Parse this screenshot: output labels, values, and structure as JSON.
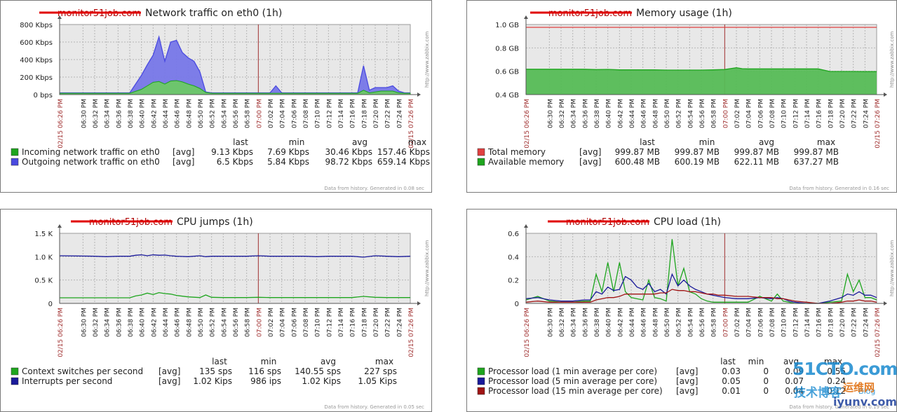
{
  "watermark": {
    "main": "51CTO.com",
    "sub1": "技术博客",
    "sub2": "Blog",
    "sub3": "运维网",
    "sub4": "iyunv.com"
  },
  "colors": {
    "plot_bg": "#e8e8e8",
    "grid": "#b5b5b5",
    "time_red": "#a03030",
    "green": "#1ea51e",
    "blue": "#4a4ae0",
    "darkblue": "#1a1a9a",
    "darkred": "#a01414",
    "trigger_red": "#e04040"
  },
  "time_labels": [
    "02/15 06:26 PM",
    "06:30 PM",
    "06:32 PM",
    "06:34 PM",
    "06:36 PM",
    "06:38 PM",
    "06:40 PM",
    "06:42 PM",
    "06:44 PM",
    "06:46 PM",
    "06:48 PM",
    "06:50 PM",
    "06:52 PM",
    "06:54 PM",
    "06:56 PM",
    "06:58 PM",
    "07:00 PM",
    "07:02 PM",
    "07:04 PM",
    "07:06 PM",
    "07:08 PM",
    "07:10 PM",
    "07:12 PM",
    "07:14 PM",
    "07:16 PM",
    "07:18 PM",
    "07:20 PM",
    "07:22 PM",
    "07:24 PM",
    "02/15 07:26 PM"
  ],
  "chart_data": [
    {
      "id": "network",
      "type": "area",
      "host_struck": "monitor51job.com",
      "title": "Network traffic on eth0 (1h)",
      "yticks": [
        "800 Kbps",
        "600 Kbps",
        "400 Kbps",
        "200 Kbps",
        "0 bps"
      ],
      "ylim": [
        0,
        800
      ],
      "unit": "Kbps",
      "x_minutes": [
        0,
        6,
        8,
        10,
        12,
        14,
        15,
        16,
        17,
        18,
        19,
        20,
        21,
        22,
        23,
        24,
        25,
        26,
        27,
        28,
        29,
        30,
        31,
        32,
        33,
        34,
        35,
        36,
        37,
        38,
        39,
        40,
        41,
        42,
        43,
        44,
        45,
        46,
        47,
        48,
        49,
        50,
        51,
        52,
        53,
        54,
        55,
        56,
        57,
        58,
        59,
        60
      ],
      "series": [
        {
          "name": "Incoming network traffic on eth0",
          "fn": "[avg]",
          "last": "9.13 Kbps",
          "min": "7.69 Kbps",
          "avg": "30.46 Kbps",
          "max": "157.46 Kbps",
          "color": "#1ea51e",
          "values": [
            15,
            15,
            15,
            15,
            15,
            60,
            100,
            140,
            150,
            120,
            155,
            160,
            145,
            120,
            100,
            70,
            25,
            15,
            15,
            15,
            15,
            15,
            15,
            15,
            15,
            15,
            15,
            15,
            15,
            15,
            15,
            15,
            15,
            15,
            15,
            15,
            15,
            15,
            15,
            15,
            15,
            15,
            15,
            50,
            20,
            30,
            40,
            40,
            40,
            20,
            15,
            15
          ]
        },
        {
          "name": "Outgoing network traffic on eth0",
          "fn": "[avg]",
          "last": "6.5 Kbps",
          "min": "5.84 Kbps",
          "avg": "98.72 Kbps",
          "max": "659.14 Kbps",
          "color": "#4a4ae0",
          "values": [
            20,
            20,
            20,
            20,
            20,
            220,
            340,
            450,
            660,
            380,
            600,
            620,
            480,
            420,
            380,
            260,
            30,
            20,
            20,
            20,
            20,
            20,
            20,
            20,
            20,
            20,
            20,
            20,
            100,
            20,
            20,
            20,
            20,
            20,
            20,
            20,
            20,
            20,
            20,
            20,
            20,
            20,
            20,
            330,
            50,
            80,
            80,
            80,
            100,
            40,
            20,
            20
          ]
        }
      ]
    },
    {
      "id": "memory",
      "type": "area",
      "host_struck": "monitor51job.com",
      "title": "Memory usage (1h)",
      "yticks": [
        "1.0 GB",
        "0.8 GB",
        "0.6 GB",
        "0.4 GB"
      ],
      "ylim": [
        0.4,
        1.0
      ],
      "unit": "GB",
      "x_minutes": [
        0,
        10,
        12,
        14,
        16,
        18,
        20,
        22,
        24,
        26,
        28,
        30,
        32,
        34,
        36,
        37,
        38,
        40,
        42,
        44,
        46,
        48,
        50,
        52,
        54,
        56,
        58,
        60
      ],
      "series": [
        {
          "name": "Total memory",
          "fn": "[avg]",
          "last": "999.87 MB",
          "min": "999.87 MB",
          "avg": "999.87 MB",
          "max": "999.87 MB",
          "color": "#e04040",
          "values": [
            0.976,
            0.976,
            0.976,
            0.976,
            0.976,
            0.976,
            0.976,
            0.976,
            0.976,
            0.976,
            0.976,
            0.976,
            0.976,
            0.976,
            0.976,
            0.976,
            0.976,
            0.976,
            0.976,
            0.976,
            0.976,
            0.976,
            0.976,
            0.976,
            0.976,
            0.976,
            0.976,
            0.976
          ]
        },
        {
          "name": "Available memory",
          "fn": "[avg]",
          "last": "600.48 MB",
          "min": "600.19 MB",
          "avg": "622.11 MB",
          "max": "637.27 MB",
          "color": "#1ea51e",
          "values": [
            0.617,
            0.617,
            0.614,
            0.616,
            0.612,
            0.612,
            0.612,
            0.612,
            0.61,
            0.61,
            0.61,
            0.61,
            0.612,
            0.615,
            0.63,
            0.622,
            0.62,
            0.62,
            0.62,
            0.62,
            0.62,
            0.62,
            0.62,
            0.598,
            0.598,
            0.598,
            0.597,
            0.597
          ]
        }
      ]
    },
    {
      "id": "cpujumps",
      "type": "line",
      "host_struck": "monitor51job.com",
      "title": "CPU jumps (1h)",
      "yticks": [
        "1.5 K",
        "1.0 K",
        "0.5 K",
        "0"
      ],
      "ylim": [
        0,
        1500
      ],
      "unit": "sps",
      "x_minutes": [
        0,
        6,
        8,
        10,
        12,
        13,
        14,
        15,
        16,
        17,
        18,
        19,
        20,
        22,
        24,
        25,
        26,
        28,
        30,
        32,
        34,
        36,
        38,
        40,
        42,
        44,
        46,
        48,
        50,
        52,
        54,
        56,
        58,
        60
      ],
      "series": [
        {
          "name": "Context switches per second",
          "fn": "[avg]",
          "last": "135 sps",
          "min": "116 sps",
          "avg": "140.55 sps",
          "max": "227 sps",
          "color": "#1ea51e",
          "values": [
            120,
            120,
            120,
            120,
            120,
            160,
            180,
            220,
            190,
            230,
            210,
            200,
            170,
            140,
            125,
            180,
            130,
            125,
            125,
            125,
            130,
            125,
            125,
            125,
            125,
            125,
            125,
            125,
            125,
            150,
            130,
            125,
            125,
            125
          ]
        },
        {
          "name": "Interrupts per second",
          "fn": "[avg]",
          "last": "1.02 Kips",
          "min": "986 ips",
          "avg": "1.02 Kips",
          "max": "1.05 Kips",
          "color": "#1a1a9a",
          "values": [
            1020,
            1010,
            1000,
            1010,
            1010,
            1030,
            1040,
            1020,
            1040,
            1030,
            1035,
            1020,
            1010,
            1000,
            1020,
            1000,
            1010,
            1010,
            1010,
            1010,
            1020,
            1010,
            1010,
            1010,
            1010,
            1000,
            1010,
            1010,
            1010,
            990,
            1020,
            1010,
            1000,
            1010
          ]
        }
      ]
    },
    {
      "id": "cpuload",
      "type": "line",
      "host_struck": "monitor51job.com",
      "title": "CPU load (1h)",
      "yticks": [
        "0.6",
        "0.4",
        "0.2",
        "0"
      ],
      "ylim": [
        0,
        0.6
      ],
      "unit": "",
      "x_minutes": [
        0,
        2,
        4,
        6,
        8,
        10,
        11,
        12,
        13,
        14,
        15,
        16,
        17,
        18,
        19,
        20,
        21,
        22,
        23,
        24,
        25,
        26,
        27,
        28,
        29,
        30,
        31,
        32,
        33,
        34,
        36,
        38,
        40,
        42,
        43,
        44,
        45,
        46,
        48,
        50,
        52,
        54,
        55,
        56,
        57,
        58,
        59,
        60
      ],
      "series": [
        {
          "name": "Processor load (1 min average per core)",
          "fn": "[avg]",
          "last": "0.03",
          "min": "0",
          "avg": "0.09",
          "max": "0.55",
          "color": "#1ea51e",
          "values": [
            0.03,
            0.06,
            0.02,
            0.01,
            0.01,
            0.02,
            0.02,
            0.25,
            0.1,
            0.35,
            0.1,
            0.35,
            0.1,
            0.05,
            0.04,
            0.03,
            0.2,
            0.05,
            0.04,
            0.02,
            0.55,
            0.15,
            0.3,
            0.1,
            0.08,
            0.04,
            0.02,
            0.01,
            0.01,
            0.01,
            0.01,
            0.01,
            0.06,
            0.02,
            0.08,
            0.02,
            0.01,
            0.0,
            0.0,
            0.0,
            0.01,
            0.02,
            0.25,
            0.1,
            0.2,
            0.05,
            0.05,
            0.03
          ]
        },
        {
          "name": "Processor load (5 min average per core)",
          "fn": "[avg]",
          "last": "0.05",
          "min": "0",
          "avg": "0.07",
          "max": "0.24",
          "color": "#1a1a9a",
          "values": [
            0.04,
            0.05,
            0.03,
            0.02,
            0.02,
            0.03,
            0.03,
            0.1,
            0.08,
            0.14,
            0.11,
            0.12,
            0.23,
            0.2,
            0.14,
            0.12,
            0.17,
            0.1,
            0.12,
            0.08,
            0.25,
            0.15,
            0.2,
            0.15,
            0.12,
            0.1,
            0.08,
            0.07,
            0.06,
            0.05,
            0.04,
            0.04,
            0.05,
            0.04,
            0.05,
            0.04,
            0.02,
            0.01,
            0.0,
            0.0,
            0.02,
            0.05,
            0.08,
            0.07,
            0.1,
            0.07,
            0.07,
            0.05
          ]
        },
        {
          "name": "Processor load (15 min average per core)",
          "fn": "[avg]",
          "last": "0.01",
          "min": "0",
          "avg": "0.04",
          "max": "0.12",
          "color": "#a01414",
          "values": [
            0.01,
            0.02,
            0.01,
            0.01,
            0.01,
            0.01,
            0.01,
            0.03,
            0.04,
            0.05,
            0.05,
            0.06,
            0.08,
            0.08,
            0.08,
            0.08,
            0.08,
            0.08,
            0.09,
            0.09,
            0.12,
            0.11,
            0.11,
            0.1,
            0.1,
            0.09,
            0.08,
            0.08,
            0.07,
            0.07,
            0.06,
            0.06,
            0.05,
            0.05,
            0.04,
            0.04,
            0.03,
            0.02,
            0.01,
            0.0,
            0.0,
            0.01,
            0.02,
            0.02,
            0.03,
            0.02,
            0.02,
            0.01
          ]
        }
      ]
    }
  ],
  "legend_headers": {
    "last": "last",
    "min": "min",
    "avg": "avg",
    "max": "max"
  },
  "footers": {
    "network": "Data from history. Generated in 0.08 sec",
    "memory": "Data from history. Generated in 0.16 sec",
    "cpujumps": "Data from history. Generated in 0.05 sec",
    "cpuload": "Data from history. Generated in 0.19 sec"
  },
  "side_text": "http://www.zabbix.com"
}
